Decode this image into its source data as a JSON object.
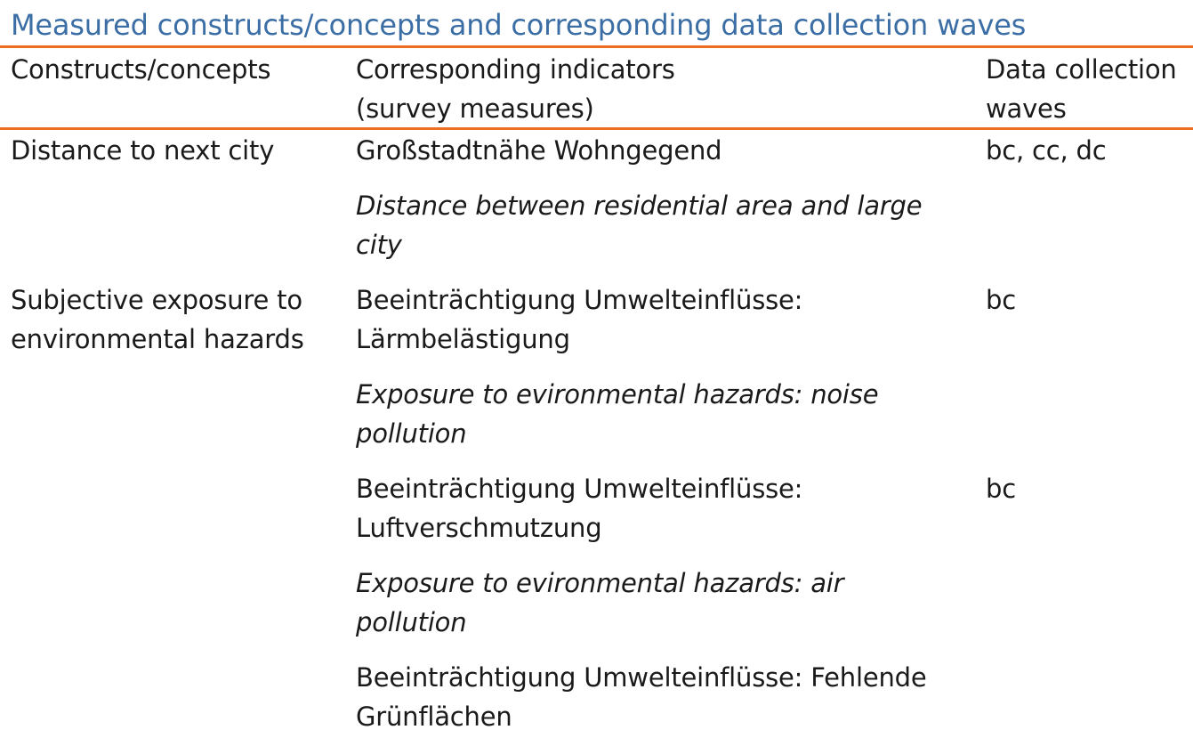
{
  "title": "Measured constructs/concepts and corresponding data collection waves",
  "header": {
    "col1": "Constructs/concepts",
    "col2": [
      "Corresponding indicators",
      "(survey measures)"
    ],
    "col3": [
      "Data collection",
      "waves"
    ]
  },
  "rows": [
    {
      "construct": [
        "Distance to next city"
      ],
      "indicators": [
        {
          "de": [
            "Großstadtnähe Wohngegend"
          ],
          "en": [
            "Distance between residential area and large",
            "city"
          ]
        }
      ],
      "waves": "bc, cc, dc"
    },
    {
      "construct": [
        "Subjective exposure to",
        "environmental hazards"
      ],
      "indicators": [
        {
          "de": [
            "Beeinträchtigung Umwelteinflüsse:",
            "Lärmbelästigung"
          ],
          "en": [
            "Exposure to evironmental hazards: noise",
            "pollution"
          ],
          "waves": "bc"
        },
        {
          "de": [
            "Beeinträchtigung Umwelteinflüsse:",
            "Luftverschmutzung"
          ],
          "en": [
            "Exposure to evironmental hazards: air",
            "pollution"
          ],
          "waves": "bc"
        },
        {
          "de": [
            "Beeinträchtigung Umwelteinflüsse: Fehlende",
            "Grünflächen"
          ]
        }
      ]
    }
  ]
}
